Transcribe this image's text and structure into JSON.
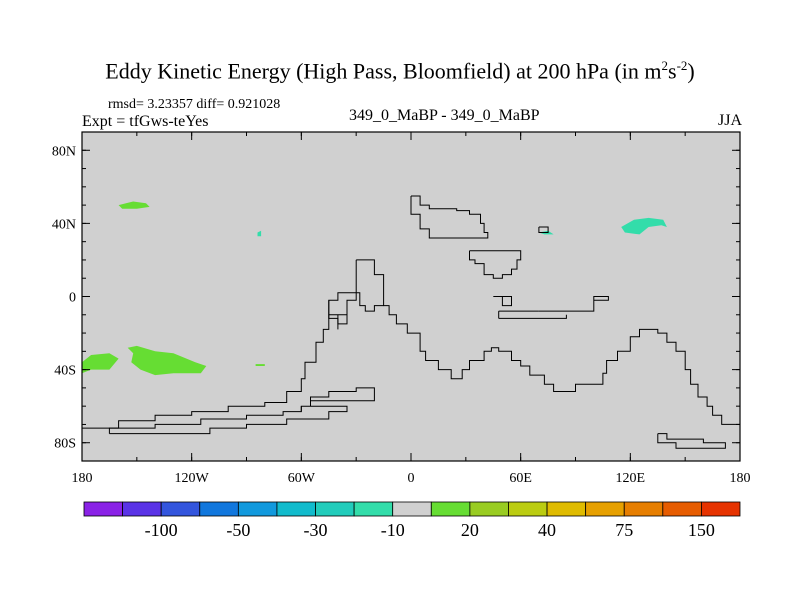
{
  "chart_data": {
    "type": "map",
    "title_main": "Eddy Kinetic Energy (High Pass, Bloomfield) at 200 hPa (in m",
    "title_sup1": "2",
    "title_mid": "s",
    "title_sup2": "-2",
    "title_end": ")",
    "stats_label": "rmsd= 3.23357 diff= 0.921028",
    "experiment_label": "Expt = tfGws-teYes",
    "center_label": "349_0_MaBP - 349_0_MaBP",
    "season_label": "JJA",
    "lon_range": [
      -180,
      180
    ],
    "lat_range": [
      -90,
      90
    ],
    "x_tick_values": [
      -180,
      -120,
      -60,
      0,
      60,
      120,
      180
    ],
    "x_tick_labels": [
      "180",
      "120W",
      "60W",
      "0",
      "60E",
      "120E",
      "180"
    ],
    "y_tick_values": [
      80,
      40,
      0,
      -40,
      -80
    ],
    "y_tick_labels": [
      "80N",
      "40N",
      "0",
      "40S",
      "80S"
    ],
    "background_color": "#d0d0d0",
    "coastlines": [
      [
        [
          0,
          55
        ],
        [
          5,
          55
        ],
        [
          5,
          50
        ],
        [
          10,
          50
        ],
        [
          10,
          48
        ],
        [
          25,
          48
        ],
        [
          25,
          47
        ],
        [
          32,
          47
        ],
        [
          32,
          45
        ],
        [
          38,
          45
        ],
        [
          38,
          40
        ],
        [
          40,
          40
        ],
        [
          40,
          35
        ],
        [
          42,
          35
        ],
        [
          42,
          32
        ],
        [
          10,
          32
        ],
        [
          10,
          37
        ],
        [
          5,
          37
        ],
        [
          5,
          45
        ],
        [
          0,
          45
        ],
        [
          0,
          55
        ]
      ],
      [
        [
          32,
          25
        ],
        [
          60,
          25
        ],
        [
          60,
          20
        ],
        [
          58,
          20
        ],
        [
          58,
          15
        ],
        [
          55,
          15
        ],
        [
          55,
          12
        ],
        [
          50,
          12
        ],
        [
          50,
          10
        ],
        [
          45,
          10
        ],
        [
          45,
          12
        ],
        [
          40,
          12
        ],
        [
          40,
          18
        ],
        [
          35,
          18
        ],
        [
          35,
          20
        ],
        [
          32,
          20
        ],
        [
          32,
          25
        ]
      ],
      [
        [
          -30,
          20
        ],
        [
          -20,
          20
        ],
        [
          -20,
          12
        ],
        [
          -15,
          12
        ],
        [
          -15,
          -5
        ],
        [
          -12,
          -5
        ],
        [
          -12,
          -10
        ],
        [
          -8,
          -10
        ],
        [
          -8,
          -15
        ],
        [
          -2,
          -15
        ],
        [
          -2,
          -20
        ],
        [
          5,
          -20
        ],
        [
          5,
          -30
        ],
        [
          8,
          -30
        ],
        [
          8,
          -35
        ],
        [
          15,
          -35
        ],
        [
          15,
          -40
        ],
        [
          22,
          -40
        ],
        [
          22,
          -45
        ],
        [
          28,
          -45
        ],
        [
          28,
          -40
        ],
        [
          32,
          -40
        ],
        [
          32,
          -35
        ],
        [
          40,
          -35
        ],
        [
          40,
          -30
        ],
        [
          44,
          -30
        ],
        [
          44,
          -28
        ],
        [
          48,
          -28
        ],
        [
          48,
          -30
        ],
        [
          55,
          -30
        ],
        [
          55,
          -35
        ],
        [
          60,
          -35
        ],
        [
          60,
          -38
        ],
        [
          65,
          -38
        ],
        [
          65,
          -43
        ],
        [
          73,
          -43
        ],
        [
          73,
          -48
        ],
        [
          78,
          -48
        ],
        [
          78,
          -52
        ],
        [
          90,
          -52
        ],
        [
          90,
          -48
        ],
        [
          105,
          -48
        ],
        [
          105,
          -42
        ],
        [
          107,
          -42
        ],
        [
          107,
          -35
        ],
        [
          113,
          -35
        ],
        [
          113,
          -30
        ],
        [
          120,
          -30
        ],
        [
          120,
          -22
        ],
        [
          125,
          -22
        ],
        [
          125,
          -18
        ],
        [
          135,
          -18
        ],
        [
          135,
          -20
        ],
        [
          140,
          -20
        ],
        [
          140,
          -25
        ],
        [
          145,
          -25
        ],
        [
          145,
          -30
        ],
        [
          150,
          -30
        ],
        [
          150,
          -40
        ],
        [
          153,
          -40
        ],
        [
          153,
          -48
        ],
        [
          157,
          -48
        ],
        [
          157,
          -55
        ],
        [
          162,
          -55
        ],
        [
          162,
          -60
        ],
        [
          165,
          -60
        ],
        [
          165,
          -65
        ],
        [
          170,
          -65
        ],
        [
          170,
          -70
        ],
        [
          180,
          -70
        ]
      ],
      [
        [
          -180,
          -72
        ],
        [
          -160,
          -72
        ],
        [
          -160,
          -68
        ],
        [
          -140,
          -68
        ],
        [
          -140,
          -65
        ],
        [
          -120,
          -65
        ],
        [
          -120,
          -63
        ],
        [
          -100,
          -63
        ],
        [
          -100,
          -60
        ],
        [
          -80,
          -60
        ],
        [
          -80,
          -58
        ],
        [
          -68,
          -58
        ],
        [
          -68,
          -52
        ],
        [
          -60,
          -52
        ],
        [
          -60,
          -45
        ],
        [
          -58,
          -45
        ],
        [
          -58,
          -36
        ],
        [
          -52,
          -36
        ],
        [
          -52,
          -25
        ],
        [
          -48,
          -25
        ],
        [
          -48,
          -18
        ],
        [
          -45,
          -18
        ],
        [
          -45,
          -2
        ],
        [
          -40,
          -2
        ],
        [
          -40,
          2
        ],
        [
          -28,
          2
        ],
        [
          -28,
          -5
        ],
        [
          -25,
          -5
        ],
        [
          -25,
          -8
        ],
        [
          -20,
          -8
        ],
        [
          -20,
          -5
        ],
        [
          -15,
          -5
        ]
      ],
      [
        [
          -45,
          -2
        ],
        [
          -45,
          -12
        ],
        [
          -40,
          -12
        ],
        [
          -40,
          -15
        ],
        [
          -35,
          -15
        ],
        [
          -35,
          -10
        ],
        [
          -45,
          -10
        ]
      ],
      [
        [
          -30,
          20
        ],
        [
          -30,
          -2
        ],
        [
          -35,
          -2
        ],
        [
          -35,
          -10
        ]
      ],
      [
        [
          -165,
          -75
        ],
        [
          -110,
          -75
        ],
        [
          -110,
          -72
        ],
        [
          -90,
          -72
        ],
        [
          -90,
          -70
        ],
        [
          -68,
          -70
        ],
        [
          -68,
          -67
        ],
        [
          -45,
          -67
        ],
        [
          -45,
          -63
        ],
        [
          -35,
          -63
        ],
        [
          -35,
          -60
        ],
        [
          -55,
          -60
        ],
        [
          -55,
          -55
        ],
        [
          -45,
          -55
        ],
        [
          -45,
          -52
        ],
        [
          -30,
          -52
        ],
        [
          -30,
          -50
        ],
        [
          -20,
          -50
        ],
        [
          -20,
          -57
        ],
        [
          -55,
          -57
        ],
        [
          -55,
          -60
        ],
        [
          -60,
          -60
        ],
        [
          -60,
          -63
        ],
        [
          -70,
          -63
        ],
        [
          -70,
          -65
        ],
        [
          -90,
          -65
        ],
        [
          -90,
          -67
        ],
        [
          -115,
          -67
        ],
        [
          -115,
          -70
        ],
        [
          -140,
          -70
        ],
        [
          -140,
          -72
        ],
        [
          -165,
          -72
        ],
        [
          -165,
          -75
        ]
      ],
      [
        [
          -60,
          -60
        ],
        [
          -60,
          -63
        ]
      ],
      [
        [
          45,
          0
        ],
        [
          55,
          0
        ],
        [
          55,
          -5
        ],
        [
          50,
          -5
        ],
        [
          50,
          0
        ]
      ],
      [
        [
          70,
          -8
        ],
        [
          100,
          -8
        ],
        [
          100,
          0
        ],
        [
          108,
          0
        ],
        [
          108,
          -2
        ],
        [
          100,
          -2
        ]
      ],
      [
        [
          48,
          -8
        ],
        [
          70,
          -8
        ]
      ],
      [
        [
          48,
          -12
        ],
        [
          48,
          -8
        ]
      ],
      [
        [
          48,
          -12
        ],
        [
          85,
          -12
        ],
        [
          85,
          -10
        ]
      ],
      [
        [
          70,
          38
        ],
        [
          75,
          38
        ],
        [
          75,
          35
        ],
        [
          70,
          35
        ],
        [
          70,
          38
        ]
      ],
      [
        [
          135,
          -75
        ],
        [
          140,
          -75
        ],
        [
          140,
          -78
        ],
        [
          160,
          -78
        ],
        [
          160,
          -80
        ],
        [
          172,
          -80
        ],
        [
          172,
          -83
        ],
        [
          145,
          -83
        ],
        [
          145,
          -80
        ],
        [
          135,
          -80
        ],
        [
          135,
          -75
        ]
      ],
      [
        [
          -40,
          -10
        ],
        [
          -40,
          -18
        ]
      ]
    ],
    "positive_regions": [
      {
        "name": "north-atlantic-high",
        "color": "#66dd33",
        "points": [
          [
            -160,
            50
          ],
          [
            -152,
            52
          ],
          [
            -145,
            51
          ],
          [
            -143,
            49
          ],
          [
            -150,
            48
          ],
          [
            -158,
            48
          ]
        ]
      },
      {
        "name": "south-pacific-high-east",
        "color": "#66dd33",
        "points": [
          [
            -155,
            -28
          ],
          [
            -150,
            -27
          ],
          [
            -140,
            -30
          ],
          [
            -130,
            -31
          ],
          [
            -118,
            -36
          ],
          [
            -112,
            -38
          ],
          [
            -115,
            -42
          ],
          [
            -130,
            -42
          ],
          [
            -140,
            -43
          ],
          [
            -148,
            -40
          ],
          [
            -153,
            -36
          ],
          [
            -152,
            -31
          ]
        ],
        "value_class": "20"
      },
      {
        "name": "south-pacific-high-west",
        "color": "#66dd33",
        "points": [
          [
            -180,
            -36
          ],
          [
            -175,
            -32
          ],
          [
            -165,
            -31
          ],
          [
            -160,
            -34
          ],
          [
            -165,
            -40
          ],
          [
            -175,
            -40
          ],
          [
            -180,
            -42
          ]
        ]
      },
      {
        "name": "small-high-south",
        "color": "#66dd33",
        "points": [
          [
            -85,
            -37
          ],
          [
            -80,
            -37
          ],
          [
            -80,
            -38
          ],
          [
            -85,
            -38
          ]
        ]
      }
    ],
    "negative_regions": [
      {
        "name": "north-pacific-low",
        "color": "#33ddaa",
        "points": [
          [
            117,
            35
          ],
          [
            125,
            34
          ],
          [
            130,
            38
          ],
          [
            137,
            39
          ],
          [
            140,
            38
          ],
          [
            138,
            42
          ],
          [
            130,
            43
          ],
          [
            122,
            42
          ],
          [
            115,
            38
          ]
        ]
      },
      {
        "name": "small-low-1",
        "color": "#33ddaa",
        "points": [
          [
            -84,
            35
          ],
          [
            -82,
            36
          ],
          [
            -82,
            33
          ],
          [
            -84,
            33
          ]
        ]
      },
      {
        "name": "small-low-2",
        "color": "#33ddaa",
        "points": [
          [
            70,
            35
          ],
          [
            75,
            36
          ],
          [
            78,
            34
          ],
          [
            73,
            34
          ]
        ]
      }
    ],
    "colorbar": {
      "colors": [
        "#8a22e6",
        "#5a33e6",
        "#3355dd",
        "#1177dd",
        "#1199dd",
        "#11bbcc",
        "#22ccbb",
        "#33ddaa",
        "#d0d0d0",
        "#66dd33",
        "#99cc22",
        "#bbcc11",
        "#dfbb00",
        "#e6a000",
        "#e67e00",
        "#e65c00",
        "#e63300"
      ],
      "tick_labels": [
        "-100",
        "-50",
        "-30",
        "-10",
        "20",
        "40",
        "75",
        "150"
      ]
    }
  }
}
